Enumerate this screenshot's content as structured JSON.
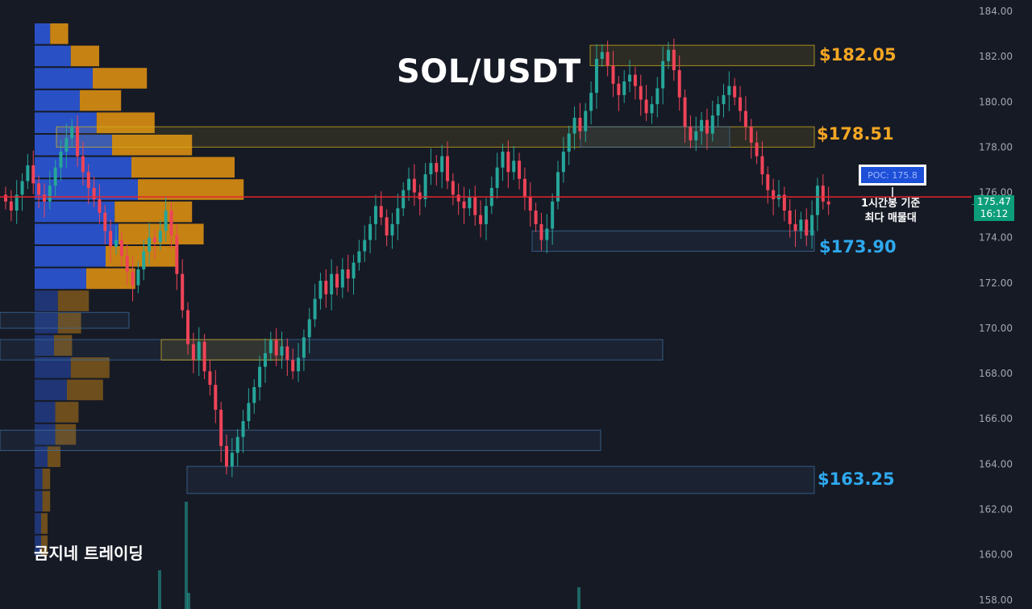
{
  "title": "SOL/USDT",
  "watermark": "곰지네 트레이딩",
  "colors": {
    "background": "#161a25",
    "up": "#26a69a",
    "down": "#ef4458",
    "poc_line": "#e5252d",
    "resistance_label": "#f5a623",
    "support_label": "#2ea9ee",
    "profile_blue": "#2b57d6",
    "profile_orange": "#d98e12"
  },
  "levels": [
    {
      "label": "$182.05",
      "price": 182.05,
      "kind": "resistance"
    },
    {
      "label": "$178.51",
      "price": 178.51,
      "kind": "resistance"
    },
    {
      "label": "$173.90",
      "price": 173.9,
      "kind": "support"
    },
    {
      "label": "$163.25",
      "price": 163.25,
      "kind": "support"
    }
  ],
  "poc": {
    "label": "POC: 175.8",
    "value": 175.8,
    "note_line1": "1시간봉 기준",
    "note_line2": "최다 매물대"
  },
  "current_price": {
    "value": 175.47,
    "price_label": "175.47",
    "countdown": "16:12"
  },
  "chart_data": {
    "type": "candlestick",
    "y_axis": {
      "min": 157.6,
      "max": 184.5,
      "ticks": [
        "158.00",
        "160.00",
        "162.00",
        "164.00",
        "166.00",
        "168.00",
        "170.00",
        "172.00",
        "174.00",
        "176.00",
        "178.00",
        "180.00",
        "182.00",
        "184.00"
      ],
      "position": "right"
    },
    "grid": false,
    "candles_close": [
      175.6,
      175.2,
      175.9,
      176.5,
      177.2,
      176.4,
      175.9,
      175.6,
      176.3,
      177.1,
      177.8,
      178.4,
      178.9,
      177.6,
      176.9,
      176.2,
      175.7,
      175.1,
      174.3,
      173.6,
      173.9,
      173.2,
      172.5,
      171.9,
      172.6,
      173.4,
      174.0,
      173.8,
      174.3,
      175.2,
      174.1,
      172.4,
      170.8,
      169.3,
      168.6,
      169.4,
      168.1,
      167.5,
      166.4,
      164.8,
      163.9,
      164.5,
      165.2,
      165.9,
      166.7,
      167.4,
      168.3,
      168.9,
      169.5,
      168.8,
      169.2,
      168.6,
      168.1,
      168.7,
      169.6,
      170.4,
      171.3,
      172.1,
      171.5,
      172.4,
      171.8,
      172.6,
      172.2,
      172.9,
      173.4,
      173.9,
      174.6,
      175.4,
      174.9,
      174.1,
      174.6,
      175.3,
      176.1,
      176.6,
      176.0,
      175.7,
      176.8,
      177.3,
      176.9,
      177.6,
      176.5,
      175.9,
      175.6,
      175.3,
      175.8,
      175.0,
      174.6,
      175.4,
      176.2,
      177.1,
      177.8,
      176.9,
      177.4,
      176.6,
      175.8,
      175.2,
      174.6,
      173.9,
      174.4,
      175.6,
      176.9,
      177.8,
      178.6,
      179.3,
      178.7,
      179.6,
      180.4,
      181.9,
      182.2,
      181.6,
      180.8,
      180.3,
      180.9,
      181.2,
      180.7,
      180.1,
      179.5,
      179.9,
      180.6,
      181.8,
      182.3,
      181.4,
      180.2,
      178.9,
      178.3,
      178.7,
      179.2,
      178.6,
      179.4,
      179.9,
      180.3,
      180.7,
      180.2,
      179.6,
      178.9,
      178.2,
      177.6,
      176.8,
      176.1,
      175.7,
      175.9,
      175.2,
      174.6,
      174.3,
      174.8,
      174.1,
      175.0,
      176.3,
      175.6,
      175.47
    ]
  }
}
